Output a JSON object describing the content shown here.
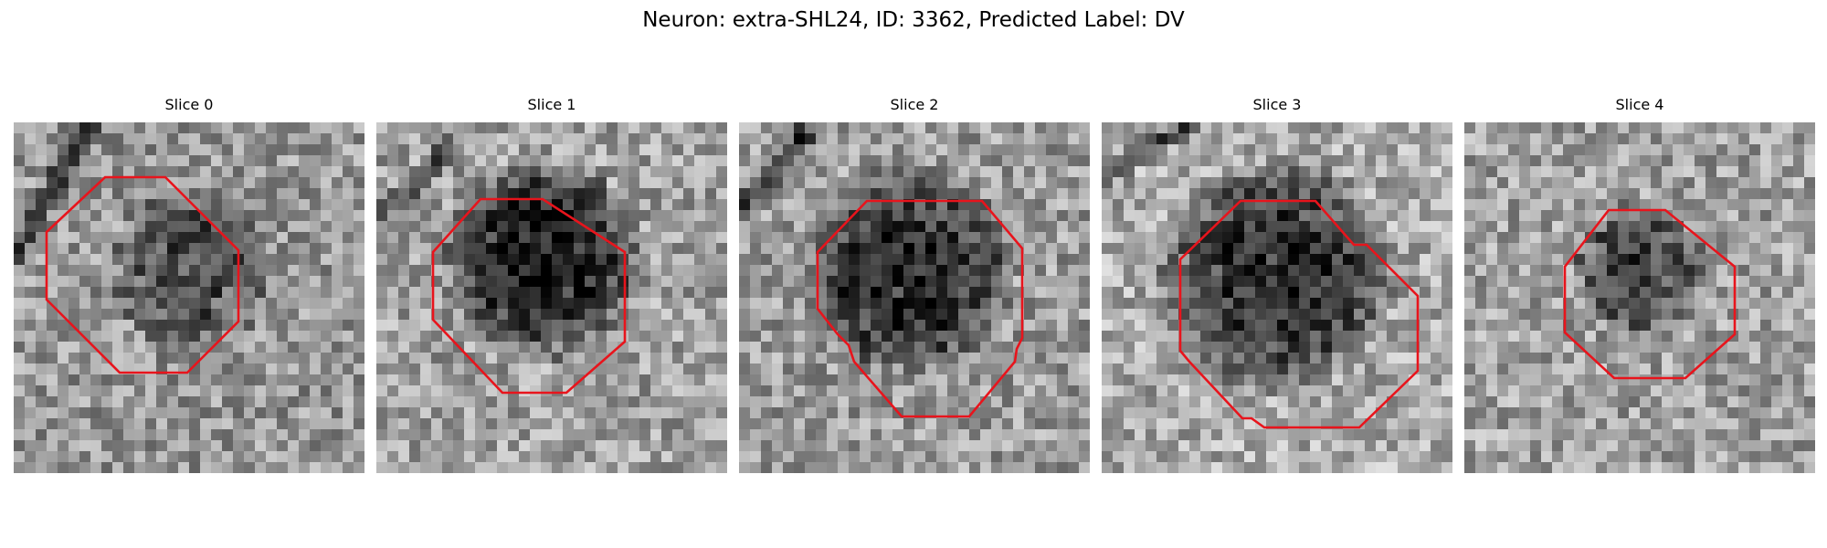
{
  "figure": {
    "title": "Neuron: extra-SHL24, ID: 3362, Predicted Label: DV",
    "outline_color": "#e8141c",
    "colormap": "grayscale",
    "grid_size": 32
  },
  "slices": [
    {
      "label": "Slice 0"
    },
    {
      "label": "Slice 1"
    },
    {
      "label": "Slice 2"
    },
    {
      "label": "Slice 3"
    },
    {
      "label": "Slice 4"
    }
  ]
}
